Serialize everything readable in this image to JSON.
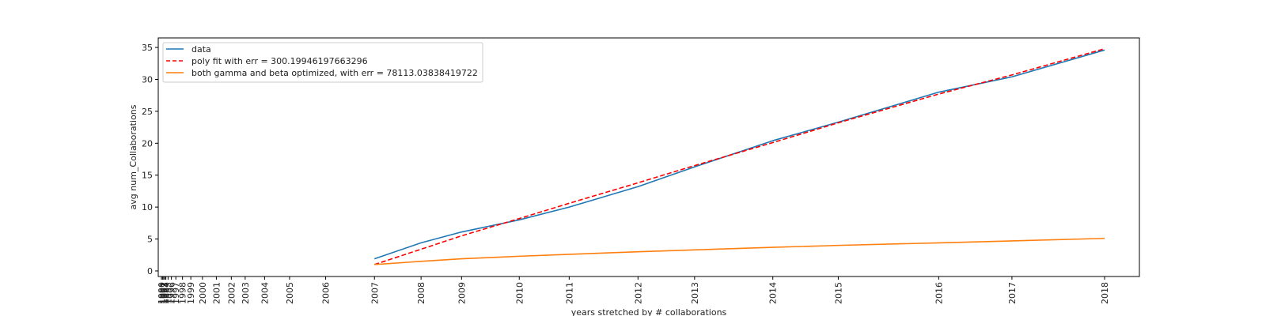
{
  "chart_data": {
    "type": "line",
    "xlabel": "years stretched by # collaborations",
    "ylabel": "avg num_Collaborations",
    "x_tick_labels": [
      "1990",
      "1991",
      "1992",
      "1993",
      "1994",
      "1995",
      "1996",
      "1997",
      "1998",
      "1999",
      "2000",
      "2001",
      "2002",
      "2003",
      "2004",
      "2005",
      "2006",
      "2007",
      "2008",
      "2009",
      "2010",
      "2011",
      "2012",
      "2013",
      "2014",
      "2015",
      "2016",
      "2017",
      "2018"
    ],
    "x_tick_positions": [
      0.0,
      0.08,
      0.16,
      0.24,
      0.32,
      0.48,
      0.72,
      1.04,
      1.52,
      2.12,
      2.96,
      3.96,
      5.04,
      6.04,
      7.44,
      9.24,
      11.84,
      15.36,
      18.72,
      21.64,
      25.8,
      29.4,
      34.36,
      38.44,
      44.08,
      48.8,
      56.04,
      61.32,
      68.0
    ],
    "ylim": [
      0,
      36
    ],
    "y_ticks": [
      0,
      5,
      10,
      15,
      20,
      25,
      30,
      35
    ],
    "series": [
      {
        "name": "data",
        "color": "#1f77b4",
        "style": "solid",
        "x": [
          15.36,
          18.72,
          21.64,
          25.8,
          29.4,
          34.36,
          38.44,
          44.08,
          48.8,
          56.04,
          61.32,
          68.0
        ],
        "y": [
          1.9,
          4.4,
          6.1,
          8.0,
          10.0,
          13.2,
          16.3,
          20.4,
          23.3,
          28.0,
          30.4,
          34.6
        ]
      },
      {
        "name": "poly fit with err = 300.19946197663296",
        "color": "#ff0000",
        "style": "dashed",
        "x": [
          15.36,
          18.72,
          21.64,
          25.8,
          29.4,
          34.36,
          38.44,
          44.08,
          48.8,
          56.04,
          61.32,
          68.0
        ],
        "y": [
          1.0,
          3.4,
          5.5,
          8.2,
          10.6,
          13.8,
          16.5,
          20.1,
          23.2,
          27.7,
          30.7,
          34.8
        ]
      },
      {
        "name": "both gamma and beta optimized, with err = 78113.03838419722",
        "color": "#ff7f0e",
        "style": "solid",
        "x": [
          15.36,
          18.72,
          21.64,
          25.8,
          29.4,
          34.36,
          38.44,
          44.08,
          48.8,
          56.04,
          61.32,
          68.0
        ],
        "y": [
          1.0,
          1.5,
          1.9,
          2.3,
          2.6,
          3.0,
          3.3,
          3.7,
          4.0,
          4.4,
          4.7,
          5.1
        ]
      }
    ],
    "legend": {
      "location": "upper left"
    },
    "grid": false
  }
}
